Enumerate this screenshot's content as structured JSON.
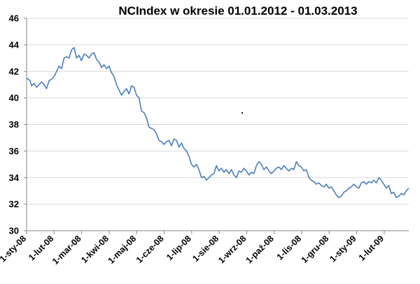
{
  "chart_data": {
    "type": "line",
    "title": "NCIndex w okresie 01.01.2012 - 01.03.2013",
    "xlabel": "",
    "ylabel": "",
    "ylim": [
      30,
      46
    ],
    "yticks": [
      30,
      32,
      34,
      36,
      38,
      40,
      42,
      44,
      46
    ],
    "grid": true,
    "legend": "none",
    "line_color": "#4a7ebb",
    "x_tick_labels": [
      "1-sty-08",
      "1-lut-08",
      "1-mar-08",
      "1-kwi-08",
      "1-maj-08",
      "1-cze-08",
      "1-lip-08",
      "1-sie-08",
      "1-wrz-08",
      "1-paź-08",
      "1-lis-08",
      "1-gru-08",
      "1-sty-09",
      "1-lut-09"
    ],
    "series": [
      {
        "x": [
          "1-sty-08",
          "1-lut-08",
          "1-mar-08",
          "1-kwi-08",
          "1-maj-08",
          "1-cze-08",
          "1-lip-08",
          "1-sie-08",
          "1-wrz-08",
          "1-paź-08",
          "1-lis-08",
          "1-gru-08",
          "1-sty-09",
          "1-lut-09"
        ],
        "values": [
          41.4,
          42.0,
          43.2,
          42.4,
          40.4,
          36.9,
          35.3,
          34.0,
          34.5,
          34.7,
          34.6,
          33.1,
          33.3,
          33.4
        ]
      }
    ],
    "points": [
      [
        0,
        41.5
      ],
      [
        0.7,
        41.3
      ],
      [
        1,
        40.9
      ],
      [
        1.5,
        41.1
      ],
      [
        2,
        40.8
      ],
      [
        2.5,
        41.0
      ],
      [
        3,
        41.2
      ],
      [
        3.5,
        41.0
      ],
      [
        4,
        40.7
      ],
      [
        4.5,
        41.3
      ],
      [
        5,
        41.4
      ],
      [
        5.5,
        41.6
      ],
      [
        6,
        42.0
      ],
      [
        6.5,
        42.4
      ],
      [
        7,
        42.2
      ],
      [
        7.5,
        43.0
      ],
      [
        8,
        43.1
      ],
      [
        8.5,
        43.0
      ],
      [
        9,
        43.6
      ],
      [
        9.5,
        43.8
      ],
      [
        10,
        43.0
      ],
      [
        10.5,
        43.2
      ],
      [
        11,
        42.8
      ],
      [
        11.5,
        43.3
      ],
      [
        12,
        43.2
      ],
      [
        12.5,
        43.0
      ],
      [
        13,
        43.3
      ],
      [
        13.5,
        43.4
      ],
      [
        14,
        42.9
      ],
      [
        14.5,
        42.7
      ],
      [
        15,
        42.3
      ],
      [
        15.5,
        42.5
      ],
      [
        16,
        42.2
      ],
      [
        16.5,
        42.4
      ],
      [
        17,
        41.9
      ],
      [
        17.5,
        41.6
      ],
      [
        18,
        41.0
      ],
      [
        18.5,
        40.6
      ],
      [
        19,
        40.2
      ],
      [
        19.5,
        40.5
      ],
      [
        20,
        40.7
      ],
      [
        20.5,
        40.3
      ],
      [
        21,
        40.9
      ],
      [
        21.5,
        40.8
      ],
      [
        22,
        40.2
      ],
      [
        22.5,
        40.0
      ],
      [
        23,
        39.0
      ],
      [
        23.5,
        38.9
      ],
      [
        24,
        38.5
      ],
      [
        24.5,
        37.8
      ],
      [
        25,
        37.7
      ],
      [
        25.5,
        37.6
      ],
      [
        26,
        37.3
      ],
      [
        26.5,
        36.8
      ],
      [
        27,
        36.7
      ],
      [
        27.5,
        36.5
      ],
      [
        28,
        36.7
      ],
      [
        28.5,
        36.8
      ],
      [
        29,
        36.4
      ],
      [
        29.5,
        36.9
      ],
      [
        30,
        36.8
      ],
      [
        30.5,
        36.3
      ],
      [
        31,
        36.6
      ],
      [
        31.5,
        36.2
      ],
      [
        32,
        36.0
      ],
      [
        32.5,
        35.6
      ],
      [
        33,
        35.0
      ],
      [
        33.5,
        34.8
      ],
      [
        34,
        35.0
      ],
      [
        34.5,
        34.6
      ],
      [
        35,
        34.0
      ],
      [
        35.5,
        34.1
      ],
      [
        36,
        33.8
      ],
      [
        36.5,
        34.0
      ],
      [
        37,
        34.2
      ],
      [
        37.5,
        34.3
      ],
      [
        38,
        34.9
      ],
      [
        38.5,
        34.5
      ],
      [
        39,
        34.7
      ],
      [
        39.5,
        34.4
      ],
      [
        40,
        34.6
      ],
      [
        40.5,
        34.3
      ],
      [
        41,
        34.6
      ],
      [
        41.5,
        34.2
      ],
      [
        42,
        34.0
      ],
      [
        42.5,
        34.5
      ],
      [
        43,
        34.4
      ],
      [
        43.5,
        34.7
      ],
      [
        44,
        34.5
      ],
      [
        44.5,
        34.2
      ],
      [
        45,
        34.4
      ],
      [
        45.5,
        34.3
      ],
      [
        46,
        34.9
      ],
      [
        46.5,
        35.2
      ],
      [
        47,
        35.0
      ],
      [
        47.5,
        34.6
      ],
      [
        48,
        34.8
      ],
      [
        48.5,
        34.5
      ],
      [
        49,
        34.3
      ],
      [
        49.5,
        34.5
      ],
      [
        50,
        34.7
      ],
      [
        50.5,
        34.8
      ],
      [
        51,
        34.6
      ],
      [
        51.5,
        34.9
      ],
      [
        52,
        34.7
      ],
      [
        52.5,
        34.5
      ],
      [
        53,
        34.7
      ],
      [
        53.5,
        34.6
      ],
      [
        54,
        35.2
      ],
      [
        54.5,
        34.9
      ],
      [
        55,
        34.8
      ],
      [
        55.5,
        34.5
      ],
      [
        56,
        34.6
      ],
      [
        56.5,
        34.0
      ],
      [
        57,
        33.8
      ],
      [
        57.5,
        33.7
      ],
      [
        58,
        33.5
      ],
      [
        58.5,
        33.6
      ],
      [
        59,
        33.4
      ],
      [
        59.5,
        33.3
      ],
      [
        60,
        33.5
      ],
      [
        60.5,
        33.2
      ],
      [
        61,
        33.3
      ],
      [
        61.5,
        33.0
      ],
      [
        62,
        32.7
      ],
      [
        62.5,
        32.5
      ],
      [
        63,
        32.6
      ],
      [
        63.5,
        32.9
      ],
      [
        64,
        33.0
      ],
      [
        64.5,
        33.2
      ],
      [
        65,
        33.3
      ],
      [
        65.5,
        33.5
      ],
      [
        66,
        33.3
      ],
      [
        66.5,
        33.2
      ],
      [
        67,
        33.6
      ],
      [
        67.5,
        33.7
      ],
      [
        68,
        33.5
      ],
      [
        68.5,
        33.7
      ],
      [
        69,
        33.6
      ],
      [
        69.5,
        33.8
      ],
      [
        70,
        33.6
      ],
      [
        70.5,
        34.0
      ],
      [
        71,
        33.8
      ],
      [
        71.5,
        33.5
      ],
      [
        72,
        33.2
      ],
      [
        72.5,
        33.4
      ],
      [
        73,
        32.8
      ],
      [
        73.5,
        32.9
      ],
      [
        74,
        32.5
      ],
      [
        74.5,
        32.6
      ],
      [
        75,
        32.8
      ],
      [
        75.5,
        32.7
      ],
      [
        76,
        33.0
      ],
      [
        76.5,
        33.2
      ]
    ]
  }
}
